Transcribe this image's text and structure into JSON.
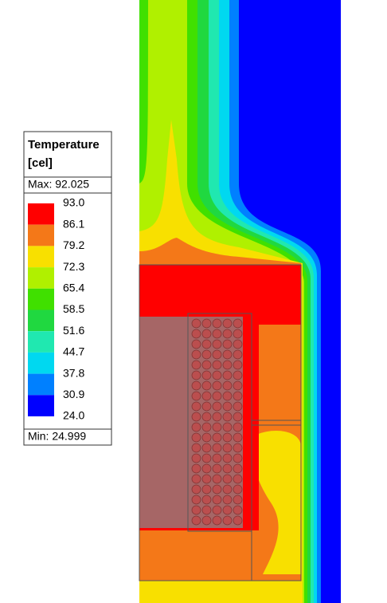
{
  "legend": {
    "title_line1": "Temperature",
    "title_line2": "[cel]",
    "max": "Max: 92.025",
    "min": "Min: 24.999",
    "levels": [
      "93.0",
      "86.1",
      "79.2",
      "72.3",
      "65.4",
      "58.5",
      "51.6",
      "44.7",
      "37.8",
      "30.9",
      "24.0"
    ],
    "colors": [
      "#ff0000",
      "#f47818",
      "#f8e000",
      "#b0f000",
      "#40e000",
      "#20d840",
      "#20e8b0",
      "#00d8f0",
      "#0080ff",
      "#0000ff"
    ]
  }
}
